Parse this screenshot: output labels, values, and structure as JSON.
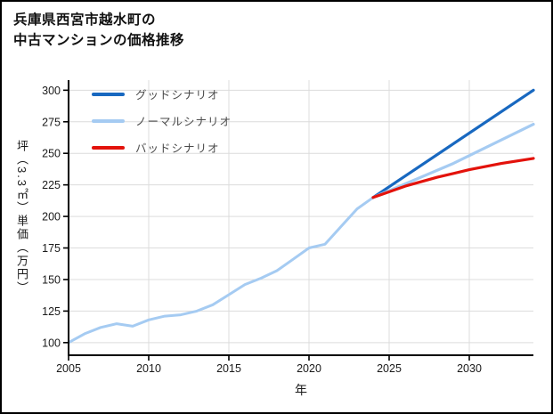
{
  "title": {
    "line1": "兵庫県西宮市越水町の",
    "line2": "中古マンションの価格推移"
  },
  "chart_data": {
    "type": "line",
    "xlabel": "年",
    "ylabel": "坪（3.3㎡）単価（万円）",
    "xlim": [
      2005,
      2034
    ],
    "ylim": [
      90,
      308
    ],
    "xticks": [
      2005,
      2010,
      2015,
      2020,
      2025,
      2030
    ],
    "yticks": [
      100,
      125,
      150,
      175,
      200,
      225,
      250,
      275,
      300
    ],
    "grid": true,
    "legend_position": "upper-left",
    "colors": {
      "good": "#1868C0",
      "normal": "#A5CBF2",
      "bad": "#E3120B",
      "grid": "#DCDCDC",
      "axis": "#000000",
      "tick_label": "#1A1A1A",
      "legend_label": "#4A4A4A"
    },
    "series": [
      {
        "id": "history",
        "color": "#A5CBF2",
        "width": 3,
        "points": [
          [
            2005,
            100
          ],
          [
            2006,
            107
          ],
          [
            2007,
            112
          ],
          [
            2008,
            115
          ],
          [
            2009,
            113
          ],
          [
            2010,
            118
          ],
          [
            2011,
            121
          ],
          [
            2012,
            122
          ],
          [
            2013,
            125
          ],
          [
            2014,
            130
          ],
          [
            2015,
            138
          ],
          [
            2016,
            146
          ],
          [
            2017,
            151
          ],
          [
            2018,
            157
          ],
          [
            2019,
            166
          ],
          [
            2020,
            175
          ],
          [
            2021,
            178
          ],
          [
            2022,
            192
          ],
          [
            2023,
            206
          ],
          [
            2024,
            215
          ]
        ]
      },
      {
        "id": "good",
        "label": "グッドシナリオ",
        "color": "#1868C0",
        "width": 3.2,
        "points": [
          [
            2024,
            215
          ],
          [
            2034,
            300
          ]
        ]
      },
      {
        "id": "normal",
        "label": "ノーマルシナリオ",
        "color": "#A5CBF2",
        "width": 3.2,
        "points": [
          [
            2024,
            215
          ],
          [
            2029,
            242
          ],
          [
            2034,
            273
          ]
        ]
      },
      {
        "id": "bad",
        "label": "バッドシナリオ",
        "color": "#E3120B",
        "width": 3.2,
        "points": [
          [
            2024,
            215
          ],
          [
            2026,
            224
          ],
          [
            2028,
            231
          ],
          [
            2030,
            237
          ],
          [
            2032,
            242
          ],
          [
            2034,
            246
          ]
        ]
      }
    ]
  }
}
